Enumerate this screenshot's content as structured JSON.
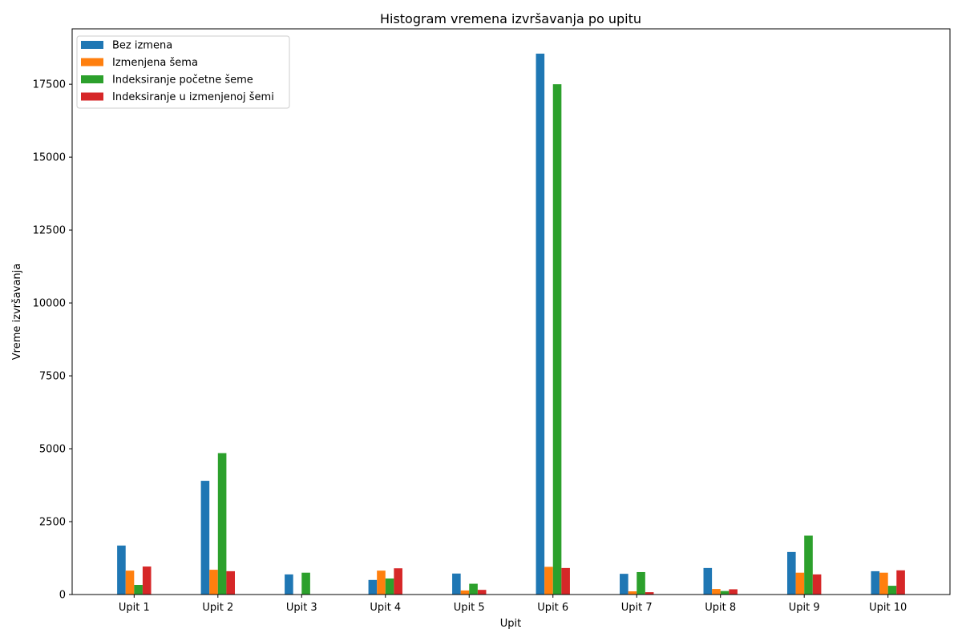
{
  "chart_data": {
    "type": "bar",
    "title": "Histogram vremena izvršavanja po upitu",
    "xlabel": "Upit",
    "ylabel": "Vreme izvršavanja",
    "categories": [
      "Upit 1",
      "Upit 2",
      "Upit 3",
      "Upit 4",
      "Upit 5",
      "Upit 6",
      "Upit 7",
      "Upit 8",
      "Upit 9",
      "Upit 10"
    ],
    "ylim": [
      0,
      19400
    ],
    "yticks": [
      0,
      2500,
      5000,
      7500,
      10000,
      12500,
      15000,
      17500
    ],
    "grid": false,
    "legend_position": "top-left",
    "series": [
      {
        "name": "Bez izmena",
        "color": "#1f77b4",
        "values": [
          1680,
          3900,
          690,
          500,
          720,
          18550,
          710,
          910,
          1460,
          800
        ]
      },
      {
        "name": "Izmenjena šema",
        "color": "#ff7f0e",
        "values": [
          820,
          850,
          0,
          820,
          140,
          950,
          110,
          190,
          750,
          750
        ]
      },
      {
        "name": "Indeksiranje početne šeme",
        "color": "#2ca02c",
        "values": [
          330,
          4850,
          750,
          550,
          370,
          17500,
          770,
          120,
          2020,
          300
        ]
      },
      {
        "name": "Indeksiranje u izmenjenoj šemi",
        "color": "#d62728",
        "values": [
          960,
          800,
          0,
          900,
          160,
          910,
          80,
          180,
          690,
          830
        ]
      }
    ]
  }
}
